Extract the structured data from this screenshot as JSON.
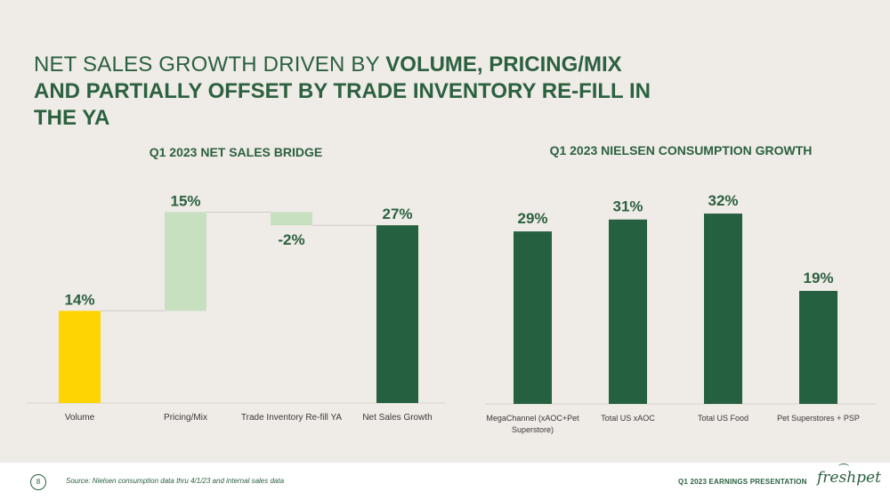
{
  "slide": {
    "title_light": "NET SALES GROWTH DRIVEN BY ",
    "title_bold_line1": "VOLUME, PRICING/MIX",
    "title_bold_line2": "AND PARTIALLY OFFSET BY TRADE INVENTORY RE-FILL IN",
    "title_bold_line3": "THE YA"
  },
  "footer": {
    "page_number": "8",
    "source": "Source:  Nielsen consumption data thru 4/1/23 and internal sales data",
    "presentation_label": "Q1 2023 EARNINGS PRESENTATION",
    "logo_text": "freshpet"
  },
  "colors": {
    "background": "#efebe6",
    "dark_green": "#2b6140",
    "bar_dark_green": "#256040",
    "light_green": "#c6e0c0",
    "yellow": "#fed402"
  },
  "chart_data": [
    {
      "type": "bar",
      "subtype": "waterfall",
      "title": "Q1 2023 NET SALES BRIDGE",
      "categories": [
        "Volume",
        "Pricing/Mix",
        "Trade Inventory Re-fill YA",
        "Net Sales Growth"
      ],
      "values": [
        14,
        15,
        -2,
        27
      ],
      "data_labels": [
        "14%",
        "15%",
        "-2%",
        "27%"
      ],
      "bar_colors": [
        "#fed402",
        "#c6e0c0",
        "#c6e0c0",
        "#256040"
      ],
      "ylim": [
        0,
        30
      ],
      "grid": false,
      "legend": "none"
    },
    {
      "type": "bar",
      "title": "Q1 2023 NIELSEN CONSUMPTION GROWTH",
      "categories": [
        "MegaChannel (xAOC+Pet Superstore)",
        "Total US xAOC",
        "Total US Food",
        "Pet Superstores + PSP"
      ],
      "values": [
        29,
        31,
        32,
        19
      ],
      "data_labels": [
        "29%",
        "31%",
        "32%",
        "19%"
      ],
      "bar_colors": [
        "#256040",
        "#256040",
        "#256040",
        "#256040"
      ],
      "ylim": [
        0,
        35
      ],
      "grid": false,
      "legend": "none"
    }
  ]
}
